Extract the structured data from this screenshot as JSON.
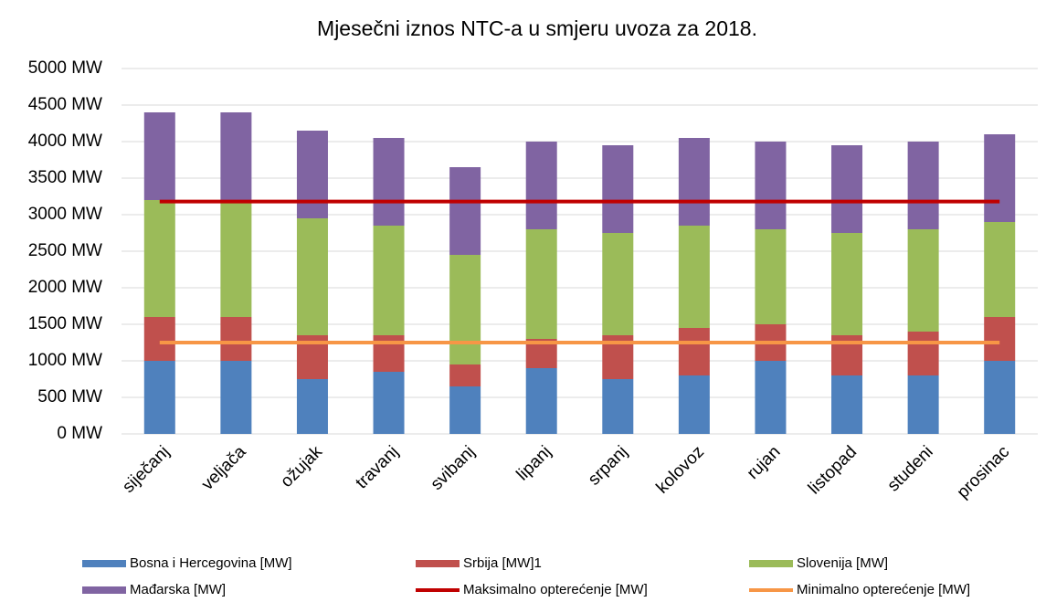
{
  "chart_data": {
    "type": "bar",
    "stacked": true,
    "title": "Mjesečni iznos NTC-a u smjeru uvoza za 2018.",
    "categories": [
      "siječanj",
      "veljača",
      "ožujak",
      "travanj",
      "svibanj",
      "lipanj",
      "srpanj",
      "kolovoz",
      "rujan",
      "listopad",
      "studeni",
      "prosinac"
    ],
    "series": [
      {
        "name": "Bosna i Hercegovina [MW]",
        "color": "#4f81bd",
        "kind": "bar",
        "values": [
          1000,
          1000,
          750,
          850,
          650,
          900,
          750,
          800,
          1000,
          800,
          800,
          1000
        ]
      },
      {
        "name": "Srbija [MW]1",
        "color": "#c0504d",
        "kind": "bar",
        "values": [
          600,
          600,
          600,
          500,
          300,
          400,
          600,
          650,
          500,
          550,
          600,
          600
        ]
      },
      {
        "name": "Slovenija [MW]",
        "color": "#9bbb59",
        "kind": "bar",
        "values": [
          1600,
          1600,
          1600,
          1500,
          1500,
          1500,
          1400,
          1400,
          1300,
          1400,
          1400,
          1300
        ]
      },
      {
        "name": "Mađarska [MW]",
        "color": "#8064a2",
        "kind": "bar",
        "values": [
          1200,
          1200,
          1200,
          1200,
          1200,
          1200,
          1200,
          1200,
          1200,
          1200,
          1200,
          1200
        ]
      },
      {
        "name": "Maksimalno opterećenje [MW]",
        "color": "#c00000",
        "kind": "line",
        "values": [
          3180,
          3180,
          3180,
          3180,
          3180,
          3180,
          3180,
          3180,
          3180,
          3180,
          3180,
          3180
        ]
      },
      {
        "name": "Minimalno opterećenje [MW]",
        "color": "#f79646",
        "kind": "line",
        "values": [
          1250,
          1250,
          1250,
          1250,
          1250,
          1250,
          1250,
          1250,
          1250,
          1250,
          1250,
          1250
        ]
      }
    ],
    "ylim": [
      0,
      5000
    ],
    "yticks": [
      {
        "value": 0,
        "label": "0 MW"
      },
      {
        "value": 500,
        "label": "500 MW"
      },
      {
        "value": 1000,
        "label": "1000 MW"
      },
      {
        "value": 1500,
        "label": "1500 MW"
      },
      {
        "value": 2000,
        "label": "2000 MW"
      },
      {
        "value": 2500,
        "label": "2500 MW"
      },
      {
        "value": 3000,
        "label": "3000 MW"
      },
      {
        "value": 3500,
        "label": "3500 MW"
      },
      {
        "value": 4000,
        "label": "4000 MW"
      },
      {
        "value": 4500,
        "label": "4500 MW"
      },
      {
        "value": 5000,
        "label": "5000 MW"
      }
    ],
    "grid": true
  }
}
